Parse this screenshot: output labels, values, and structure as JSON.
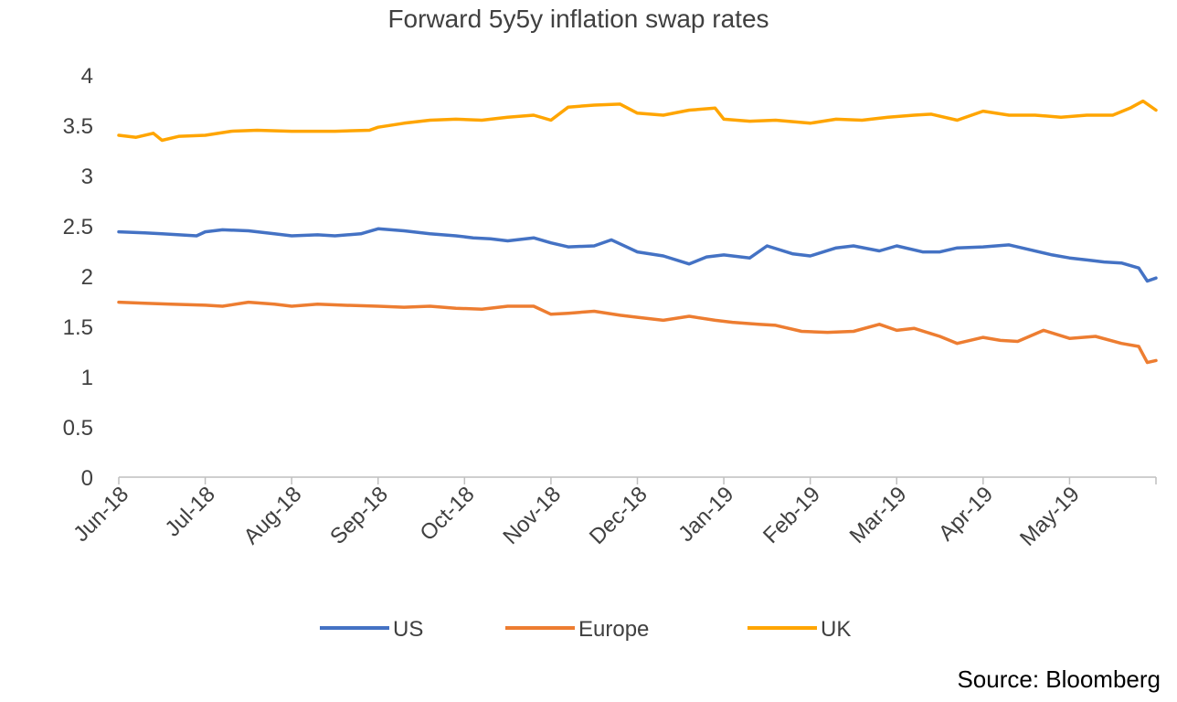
{
  "chart_data": {
    "type": "line",
    "title": "Forward 5y5y inflation swap rates",
    "xlabel": "",
    "ylabel": "",
    "ylim": [
      0,
      4
    ],
    "yticks": [
      "0",
      "0.5",
      "1",
      "1.5",
      "2",
      "2.5",
      "3",
      "3.5",
      "4"
    ],
    "ytick_values": [
      0,
      0.5,
      1,
      1.5,
      2,
      2.5,
      3,
      3.5,
      4
    ],
    "grid": false,
    "legend": "bottom",
    "categories": [
      "Jun-18",
      "Jul-18",
      "Aug-18",
      "Sep-18",
      "Oct-18",
      "Nov-18",
      "Dec-18",
      "Jan-19",
      "Feb-19",
      "Mar-19",
      "Apr-19",
      "May-19"
    ],
    "x_range_months": [
      0,
      12
    ],
    "series": [
      {
        "name": "US",
        "color": "#4472C4",
        "x": [
          0,
          0.3,
          0.5,
          0.9,
          1.0,
          1.2,
          1.5,
          1.8,
          2.0,
          2.3,
          2.5,
          2.8,
          3.0,
          3.3,
          3.6,
          3.9,
          4.1,
          4.3,
          4.5,
          4.8,
          5.0,
          5.2,
          5.5,
          5.7,
          5.9,
          6.0,
          6.3,
          6.6,
          6.8,
          7.0,
          7.3,
          7.5,
          7.8,
          8.0,
          8.3,
          8.5,
          8.8,
          9.0,
          9.3,
          9.5,
          9.7,
          10.0,
          10.3,
          10.5,
          10.8,
          11.0,
          11.2,
          11.4,
          11.6,
          11.8,
          11.9,
          12.0
        ],
        "values": [
          2.44,
          2.43,
          2.42,
          2.4,
          2.44,
          2.46,
          2.45,
          2.42,
          2.4,
          2.41,
          2.4,
          2.42,
          2.47,
          2.45,
          2.42,
          2.4,
          2.38,
          2.37,
          2.35,
          2.38,
          2.33,
          2.29,
          2.3,
          2.36,
          2.28,
          2.24,
          2.2,
          2.12,
          2.19,
          2.21,
          2.18,
          2.3,
          2.22,
          2.2,
          2.28,
          2.3,
          2.25,
          2.3,
          2.24,
          2.24,
          2.28,
          2.29,
          2.31,
          2.27,
          2.21,
          2.18,
          2.16,
          2.14,
          2.13,
          2.08,
          1.95,
          1.98
        ]
      },
      {
        "name": "Europe",
        "color": "#ED7D31",
        "x": [
          0,
          0.3,
          0.6,
          1.0,
          1.2,
          1.5,
          1.8,
          2.0,
          2.3,
          2.6,
          3.0,
          3.3,
          3.6,
          3.9,
          4.2,
          4.5,
          4.8,
          5.0,
          5.2,
          5.5,
          5.8,
          6.0,
          6.3,
          6.6,
          6.9,
          7.1,
          7.4,
          7.6,
          7.9,
          8.2,
          8.5,
          8.8,
          9.0,
          9.2,
          9.5,
          9.7,
          10.0,
          10.2,
          10.4,
          10.7,
          11.0,
          11.3,
          11.6,
          11.8,
          11.9,
          12.0
        ],
        "values": [
          1.74,
          1.73,
          1.72,
          1.71,
          1.7,
          1.74,
          1.72,
          1.7,
          1.72,
          1.71,
          1.7,
          1.69,
          1.7,
          1.68,
          1.67,
          1.7,
          1.7,
          1.62,
          1.63,
          1.65,
          1.61,
          1.59,
          1.56,
          1.6,
          1.56,
          1.54,
          1.52,
          1.51,
          1.45,
          1.44,
          1.45,
          1.52,
          1.46,
          1.48,
          1.4,
          1.33,
          1.39,
          1.36,
          1.35,
          1.46,
          1.38,
          1.4,
          1.33,
          1.3,
          1.14,
          1.16
        ]
      },
      {
        "name": "UK",
        "color": "#FFA500",
        "x": [
          0,
          0.2,
          0.4,
          0.5,
          0.7,
          1.0,
          1.3,
          1.6,
          2.0,
          2.5,
          2.9,
          3.0,
          3.3,
          3.6,
          3.9,
          4.2,
          4.5,
          4.8,
          5.0,
          5.2,
          5.5,
          5.8,
          6.0,
          6.3,
          6.6,
          6.9,
          7.0,
          7.3,
          7.6,
          8.0,
          8.3,
          8.6,
          8.9,
          9.2,
          9.4,
          9.7,
          10.0,
          10.3,
          10.6,
          10.9,
          11.2,
          11.5,
          11.7,
          11.85,
          12.0
        ],
        "values": [
          3.4,
          3.38,
          3.42,
          3.35,
          3.39,
          3.4,
          3.44,
          3.45,
          3.44,
          3.44,
          3.45,
          3.48,
          3.52,
          3.55,
          3.56,
          3.55,
          3.58,
          3.6,
          3.55,
          3.68,
          3.7,
          3.71,
          3.62,
          3.6,
          3.65,
          3.67,
          3.56,
          3.54,
          3.55,
          3.52,
          3.56,
          3.55,
          3.58,
          3.6,
          3.61,
          3.55,
          3.64,
          3.6,
          3.6,
          3.58,
          3.6,
          3.6,
          3.67,
          3.74,
          3.65
        ]
      }
    ]
  },
  "source_note": "Source: Bloomberg"
}
